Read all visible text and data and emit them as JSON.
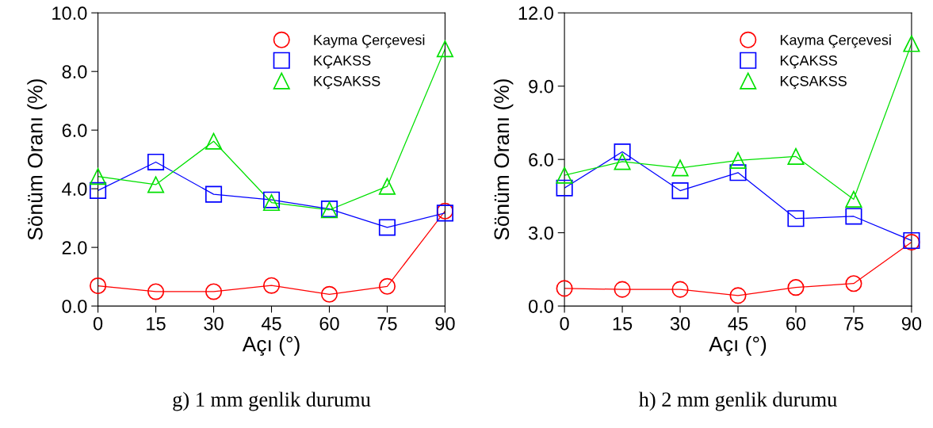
{
  "chart_data": [
    {
      "type": "line",
      "xlabel": "Açı (°)",
      "ylabel": "Sönüm Oranı (%)",
      "x": [
        0,
        15,
        30,
        45,
        60,
        75,
        90
      ],
      "xlim": [
        0,
        90
      ],
      "xticks": [
        0,
        15,
        30,
        45,
        60,
        75,
        90
      ],
      "ylim": [
        0,
        10
      ],
      "yticks": [
        {
          "value": 0,
          "label": "0.0"
        },
        {
          "value": 2,
          "label": "2.0"
        },
        {
          "value": 4,
          "label": "4.0"
        },
        {
          "value": 6,
          "label": "6.0"
        },
        {
          "value": 8,
          "label": "8.0"
        },
        {
          "value": 10,
          "label": "10.0"
        }
      ],
      "grid": false,
      "legend": "top right",
      "line_style": "solid",
      "annotations": [
        "g) 1 mm genlik durumu"
      ],
      "series": [
        {
          "name": "Kayma Çerçevesi",
          "color": "#ff0000",
          "marker": "circle",
          "values": [
            0.69,
            0.49,
            0.49,
            0.7,
            0.4,
            0.67,
            3.24
          ]
        },
        {
          "name": "KÇAKSS",
          "color": "#0000ff",
          "marker": "square",
          "values": [
            3.94,
            4.91,
            3.81,
            3.62,
            3.31,
            2.68,
            3.17
          ]
        },
        {
          "name": "KÇSAKSS",
          "color": "#00e000",
          "marker": "triangle",
          "values": [
            4.42,
            4.14,
            5.62,
            3.53,
            3.28,
            4.08,
            8.77
          ]
        }
      ]
    },
    {
      "type": "line",
      "xlabel": "Açı (°)",
      "ylabel": "Sönüm Oranı (%)",
      "x": [
        0,
        15,
        30,
        45,
        60,
        75,
        90
      ],
      "xlim": [
        0,
        90
      ],
      "xticks": [
        0,
        15,
        30,
        45,
        60,
        75,
        90
      ],
      "ylim": [
        0,
        12
      ],
      "yticks": [
        {
          "value": 0,
          "label": "0.0"
        },
        {
          "value": 3,
          "label": "3.0"
        },
        {
          "value": 6,
          "label": "6.0"
        },
        {
          "value": 9,
          "label": "9.0"
        },
        {
          "value": 12,
          "label": "12.0"
        }
      ],
      "grid": false,
      "legend": "top right",
      "line_style": "solid",
      "annotations": [
        "h) 2 mm genlik durumu"
      ],
      "series": [
        {
          "name": "Kayma Çerçevesi",
          "color": "#ff0000",
          "marker": "circle",
          "values": [
            0.72,
            0.68,
            0.68,
            0.43,
            0.76,
            0.92,
            2.61
          ]
        },
        {
          "name": "KÇAKSS",
          "color": "#0000ff",
          "marker": "square",
          "values": [
            4.83,
            6.31,
            4.72,
            5.46,
            3.58,
            3.67,
            2.68
          ]
        },
        {
          "name": "KÇSAKSS",
          "color": "#00e000",
          "marker": "triangle",
          "values": [
            5.35,
            5.91,
            5.65,
            5.96,
            6.12,
            4.37,
            10.74
          ]
        }
      ]
    }
  ]
}
